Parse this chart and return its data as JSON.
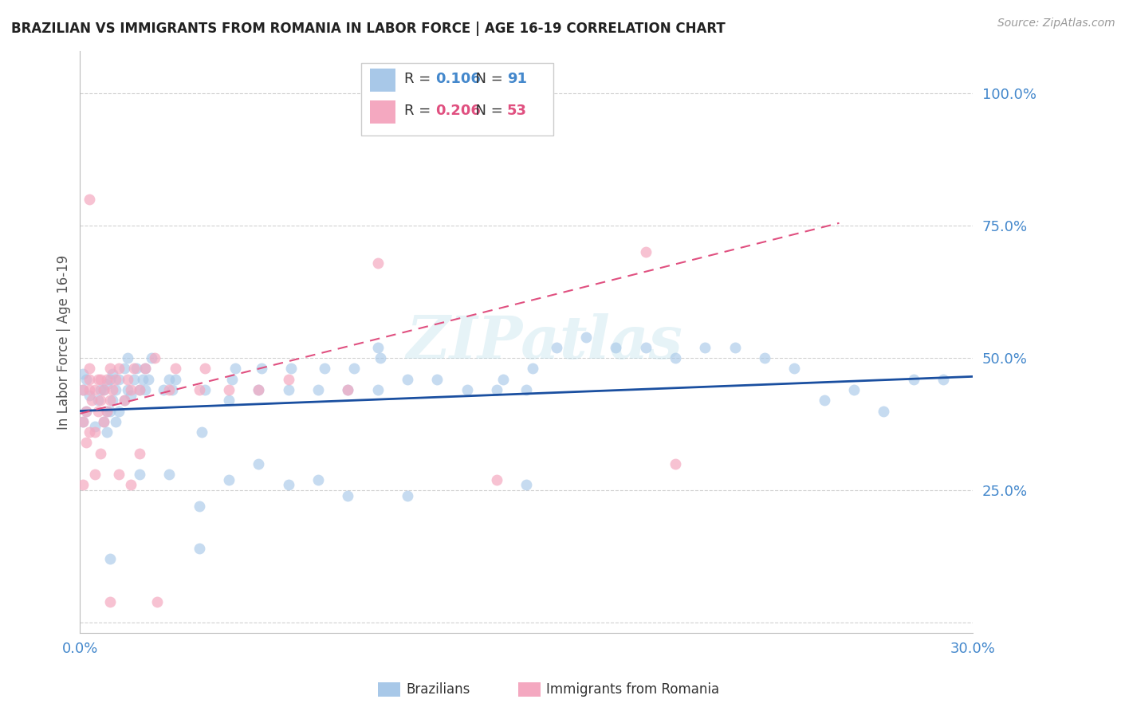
{
  "title": "BRAZILIAN VS IMMIGRANTS FROM ROMANIA IN LABOR FORCE | AGE 16-19 CORRELATION CHART",
  "source": "Source: ZipAtlas.com",
  "ylabel": "In Labor Force | Age 16-19",
  "xlim": [
    0.0,
    0.3
  ],
  "ylim": [
    -0.02,
    1.08
  ],
  "yticks": [
    0.0,
    0.25,
    0.5,
    0.75,
    1.0
  ],
  "ytick_labels": [
    "",
    "25.0%",
    "50.0%",
    "75.0%",
    "100.0%"
  ],
  "xticks": [
    0.0,
    0.05,
    0.1,
    0.15,
    0.2,
    0.25,
    0.3
  ],
  "xtick_labels": [
    "0.0%",
    "",
    "",
    "",
    "",
    "",
    "30.0%"
  ],
  "blue_color": "#a8c8e8",
  "pink_color": "#f4a8c0",
  "line_blue_color": "#1a4fa0",
  "line_pink_color": "#e05080",
  "grid_color": "#cccccc",
  "title_color": "#222222",
  "axis_label_color": "#555555",
  "tick_color": "#4488cc",
  "source_color": "#999999",
  "watermark": "ZIPatlas",
  "blue_scatter_x": [
    0.001,
    0.001,
    0.001,
    0.002,
    0.002,
    0.003,
    0.005,
    0.006,
    0.007,
    0.008,
    0.008,
    0.009,
    0.009,
    0.009,
    0.01,
    0.01,
    0.011,
    0.011,
    0.012,
    0.012,
    0.013,
    0.013,
    0.015,
    0.015,
    0.016,
    0.016,
    0.017,
    0.018,
    0.019,
    0.02,
    0.021,
    0.022,
    0.022,
    0.023,
    0.024,
    0.028,
    0.03,
    0.031,
    0.032,
    0.04,
    0.041,
    0.042,
    0.05,
    0.051,
    0.052,
    0.06,
    0.061,
    0.07,
    0.071,
    0.08,
    0.082,
    0.09,
    0.092,
    0.1,
    0.101,
    0.11,
    0.12,
    0.13,
    0.14,
    0.142,
    0.15,
    0.152,
    0.16,
    0.17,
    0.18,
    0.19,
    0.2,
    0.21,
    0.22,
    0.23,
    0.24,
    0.25,
    0.26,
    0.27,
    0.28,
    0.01,
    0.02,
    0.03,
    0.04,
    0.05,
    0.06,
    0.07,
    0.08,
    0.09,
    0.1,
    0.11,
    0.15,
    0.29
  ],
  "blue_scatter_y": [
    0.38,
    0.44,
    0.47,
    0.4,
    0.46,
    0.43,
    0.37,
    0.42,
    0.44,
    0.38,
    0.44,
    0.36,
    0.4,
    0.45,
    0.4,
    0.46,
    0.42,
    0.47,
    0.38,
    0.44,
    0.4,
    0.46,
    0.42,
    0.48,
    0.44,
    0.5,
    0.43,
    0.46,
    0.48,
    0.44,
    0.46,
    0.44,
    0.48,
    0.46,
    0.5,
    0.44,
    0.46,
    0.44,
    0.46,
    0.22,
    0.36,
    0.44,
    0.42,
    0.46,
    0.48,
    0.44,
    0.48,
    0.44,
    0.48,
    0.44,
    0.48,
    0.44,
    0.48,
    0.44,
    0.5,
    0.46,
    0.46,
    0.44,
    0.44,
    0.46,
    0.44,
    0.48,
    0.52,
    0.54,
    0.52,
    0.52,
    0.5,
    0.52,
    0.52,
    0.5,
    0.48,
    0.42,
    0.44,
    0.4,
    0.46,
    0.12,
    0.28,
    0.28,
    0.14,
    0.27,
    0.3,
    0.26,
    0.27,
    0.24,
    0.52,
    0.24,
    0.26,
    0.46
  ],
  "pink_scatter_x": [
    0.001,
    0.001,
    0.001,
    0.002,
    0.002,
    0.003,
    0.003,
    0.003,
    0.003,
    0.004,
    0.005,
    0.005,
    0.006,
    0.006,
    0.007,
    0.007,
    0.008,
    0.008,
    0.009,
    0.009,
    0.01,
    0.01,
    0.011,
    0.012,
    0.013,
    0.015,
    0.016,
    0.017,
    0.018,
    0.02,
    0.022,
    0.025,
    0.03,
    0.032,
    0.04,
    0.042,
    0.05,
    0.06,
    0.07,
    0.09,
    0.1,
    0.14,
    0.19,
    0.2,
    0.003,
    0.005,
    0.007,
    0.01,
    0.013,
    0.017,
    0.02,
    0.026
  ],
  "pink_scatter_y": [
    0.26,
    0.38,
    0.44,
    0.34,
    0.4,
    0.44,
    0.46,
    0.48,
    0.8,
    0.42,
    0.36,
    0.44,
    0.4,
    0.46,
    0.42,
    0.46,
    0.38,
    0.44,
    0.4,
    0.46,
    0.42,
    0.48,
    0.44,
    0.46,
    0.48,
    0.42,
    0.46,
    0.44,
    0.48,
    0.44,
    0.48,
    0.5,
    0.44,
    0.48,
    0.44,
    0.48,
    0.44,
    0.44,
    0.46,
    0.44,
    0.68,
    0.27,
    0.7,
    0.3,
    0.36,
    0.28,
    0.32,
    0.04,
    0.28,
    0.26,
    0.32,
    0.04
  ],
  "blue_line_x": [
    0.0,
    0.3
  ],
  "blue_line_y": [
    0.4,
    0.465
  ],
  "pink_line_x": [
    0.0,
    0.255
  ],
  "pink_line_y": [
    0.395,
    0.755
  ],
  "background_color": "#ffffff",
  "legend_entries": [
    {
      "label_r": "R = ",
      "val_r": "0.106",
      "label_n": "  N = ",
      "val_n": "91",
      "color_r": "#4488cc",
      "color_n": "#4488cc",
      "patch_color": "#a8c8e8"
    },
    {
      "label_r": "R = ",
      "val_r": "0.206",
      "label_n": "  N = ",
      "val_n": "53",
      "color_r": "#e05080",
      "color_n": "#e05080",
      "patch_color": "#f4a8c0"
    }
  ],
  "bottom_legend": [
    {
      "label": "Brazilians",
      "color": "#a8c8e8"
    },
    {
      "label": "Immigrants from Romania",
      "color": "#f4a8c0"
    }
  ]
}
